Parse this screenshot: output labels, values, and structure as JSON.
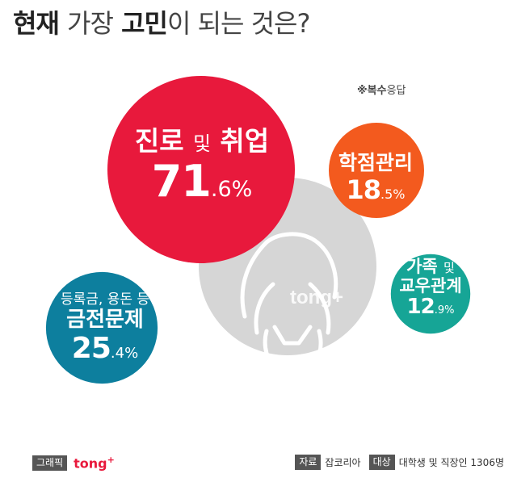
{
  "title": {
    "part1": "현재",
    "part2": "가장",
    "part3": "고민",
    "part4": "이 되는 것은?"
  },
  "note": {
    "bold": "※복수",
    "rest": "응답"
  },
  "chart_data": {
    "type": "bubble",
    "unit": "%",
    "items": [
      {
        "label": "진로",
        "label_small": "및",
        "label2": "취업",
        "value": 71.6,
        "int": "71",
        "dec": ".6",
        "color": "#e8193c"
      },
      {
        "label": "학점관리",
        "value": 18.5,
        "int": "18",
        "dec": ".5",
        "color": "#f35a1e"
      },
      {
        "label": "가족",
        "label_small": "및",
        "label_line2": "교우관계",
        "value": 12.9,
        "int": "12",
        "dec": ".9",
        "color": "#16a596"
      },
      {
        "sublabel": "등록금, 용돈 등",
        "label": "금전문제",
        "value": 25.4,
        "int": "25",
        "dec": ".4",
        "color": "#0d7f9e"
      }
    ]
  },
  "watermark": {
    "text": "tong+"
  },
  "footer": {
    "graphic_tag": "그래픽",
    "brand": "tong",
    "brand_plus": "+",
    "source_tag": "자료",
    "source": "잡코리아",
    "target_tag": "대상",
    "target": "대학생 및 직장인 1306명"
  }
}
